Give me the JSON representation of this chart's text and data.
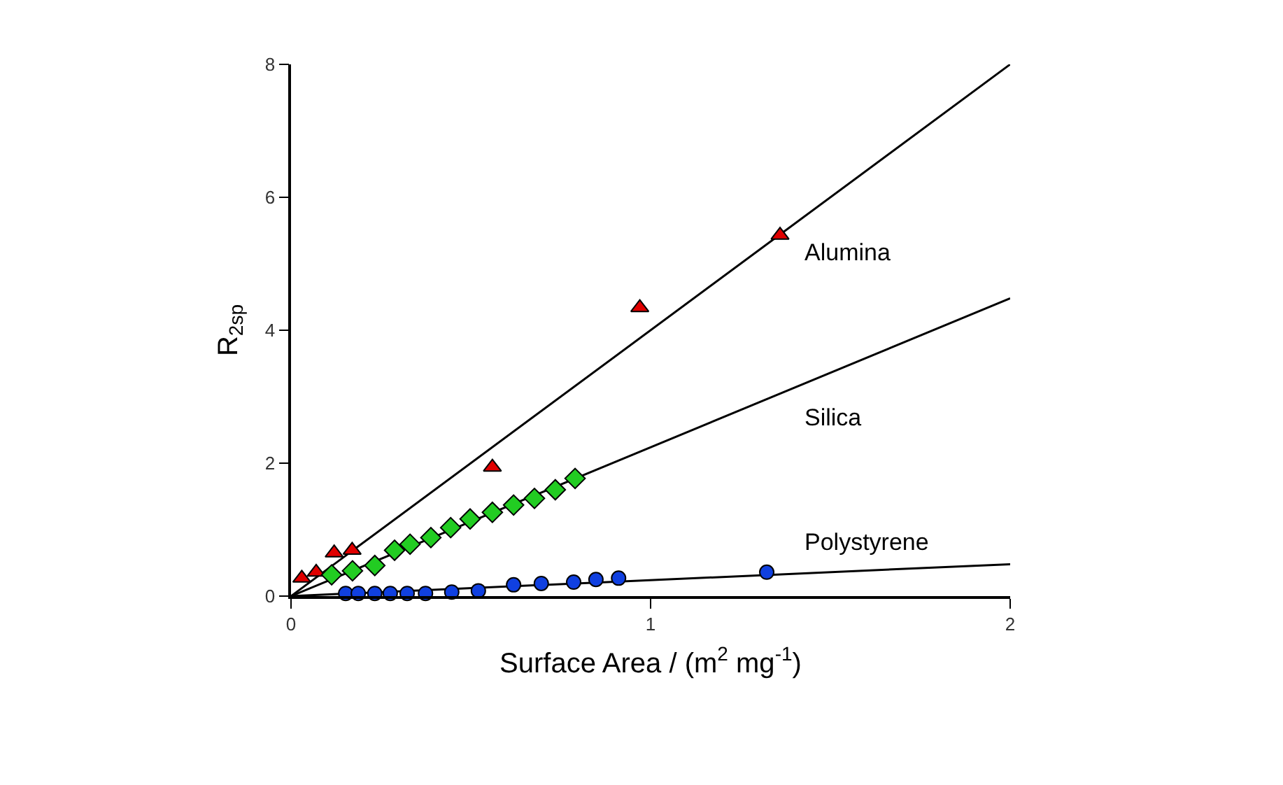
{
  "chart_data": {
    "type": "scatter",
    "xlabel": "Surface Area / (m$^{2}$ mg$^{-1}$)",
    "ylabel": "R$_{2sp}$",
    "xlim": [
      0,
      2
    ],
    "xticks": [
      0,
      1,
      2
    ],
    "ylim": [
      0,
      8
    ],
    "yticks": [
      0,
      2,
      4,
      6,
      8
    ],
    "grid": false,
    "legend": false,
    "series": [
      {
        "name": "Alumina",
        "color": "#e00000",
        "marker": "triangle",
        "x": [
          0.03,
          0.07,
          0.12,
          0.17,
          0.56,
          0.97,
          1.36
        ],
        "values": [
          0.27,
          0.36,
          0.65,
          0.69,
          1.94,
          4.34,
          5.43
        ]
      },
      {
        "name": "Silica",
        "color": "#22cc22",
        "marker": "diamond",
        "x": [
          0.113,
          0.171,
          0.233,
          0.288,
          0.331,
          0.389,
          0.444,
          0.498,
          0.56,
          0.619,
          0.677,
          0.735,
          0.79
        ],
        "values": [
          0.32,
          0.38,
          0.46,
          0.69,
          0.78,
          0.88,
          1.03,
          1.16,
          1.26,
          1.37,
          1.47,
          1.6,
          1.77
        ]
      },
      {
        "name": "Polystyrene",
        "color": "#1040e0",
        "marker": "circle",
        "x": [
          0.152,
          0.187,
          0.233,
          0.276,
          0.323,
          0.374,
          0.447,
          0.521,
          0.619,
          0.696,
          0.786,
          0.848,
          0.911,
          1.323
        ],
        "values": [
          0.04,
          0.04,
          0.04,
          0.04,
          0.04,
          0.04,
          0.06,
          0.08,
          0.17,
          0.19,
          0.21,
          0.25,
          0.27,
          0.36
        ]
      },
      {
        "type": "line",
        "color": "#000000",
        "marker": "none",
        "x": [
          0,
          2
        ],
        "values": [
          0,
          8
        ]
      },
      {
        "type": "line",
        "color": "#000000",
        "marker": "none",
        "x": [
          0,
          2
        ],
        "values": [
          0,
          4.48
        ]
      },
      {
        "type": "line",
        "color": "#000000",
        "marker": "none",
        "x": [
          0,
          2
        ],
        "values": [
          0,
          0.48
        ]
      }
    ]
  }
}
